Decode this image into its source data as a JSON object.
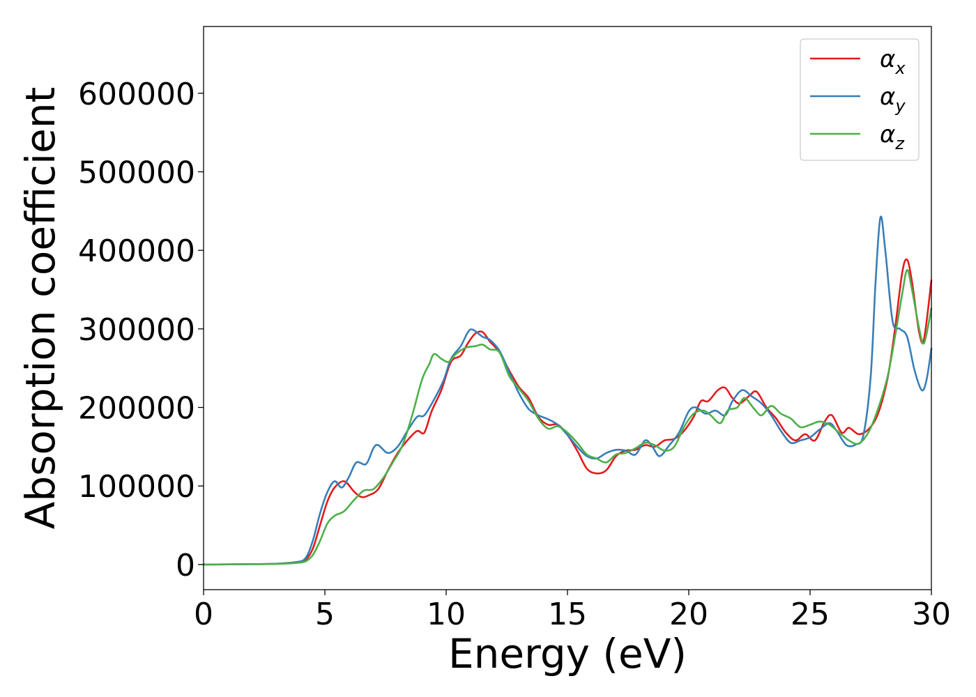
{
  "chart_data": {
    "type": "line",
    "title": "",
    "xlabel": "Energy (eV)",
    "ylabel": "Absorption coefficient",
    "xlim": [
      0,
      30
    ],
    "ylim": [
      -32000,
      685000
    ],
    "xticks": [
      0,
      5,
      10,
      15,
      20,
      25,
      30
    ],
    "yticks": [
      0,
      100000,
      200000,
      300000,
      400000,
      500000,
      600000
    ],
    "xtick_labels": [
      "0",
      "5",
      "10",
      "15",
      "20",
      "25",
      "30"
    ],
    "ytick_labels": [
      "0",
      "100000",
      "200000",
      "300000",
      "400000",
      "500000",
      "600000"
    ],
    "grid": false,
    "legend_position": "top-right",
    "series": [
      {
        "name": "α_x",
        "symbol": "α",
        "subscript": "x",
        "color": "#e41a1c",
        "points": [
          [
            0,
            0
          ],
          [
            2,
            500
          ],
          [
            3,
            1000
          ],
          [
            3.8,
            3000
          ],
          [
            4.2,
            6000
          ],
          [
            4.5,
            20000
          ],
          [
            4.8,
            50000
          ],
          [
            5.1,
            80000
          ],
          [
            5.4,
            98000
          ],
          [
            5.8,
            106000
          ],
          [
            6.2,
            93000
          ],
          [
            6.5,
            86000
          ],
          [
            6.8,
            88000
          ],
          [
            7.2,
            96000
          ],
          [
            7.6,
            120000
          ],
          [
            8,
            142000
          ],
          [
            8.4,
            158000
          ],
          [
            8.8,
            170000
          ],
          [
            9.1,
            168000
          ],
          [
            9.4,
            195000
          ],
          [
            9.8,
            222000
          ],
          [
            10.2,
            258000
          ],
          [
            10.6,
            266000
          ],
          [
            10.9,
            282000
          ],
          [
            11.2,
            294000
          ],
          [
            11.5,
            296000
          ],
          [
            11.8,
            284000
          ],
          [
            12.2,
            270000
          ],
          [
            12.6,
            247000
          ],
          [
            13,
            226000
          ],
          [
            13.4,
            212000
          ],
          [
            13.8,
            188000
          ],
          [
            14.2,
            178000
          ],
          [
            14.6,
            178000
          ],
          [
            15,
            165000
          ],
          [
            15.4,
            145000
          ],
          [
            15.8,
            122000
          ],
          [
            16.2,
            116000
          ],
          [
            16.6,
            120000
          ],
          [
            17,
            138000
          ],
          [
            17.4,
            145000
          ],
          [
            17.8,
            146000
          ],
          [
            18.2,
            152000
          ],
          [
            18.6,
            150000
          ],
          [
            19,
            158000
          ],
          [
            19.4,
            160000
          ],
          [
            19.8,
            170000
          ],
          [
            20.2,
            188000
          ],
          [
            20.5,
            208000
          ],
          [
            20.8,
            208000
          ],
          [
            21.2,
            222000
          ],
          [
            21.5,
            225000
          ],
          [
            21.8,
            212000
          ],
          [
            22.1,
            205000
          ],
          [
            22.5,
            215000
          ],
          [
            22.8,
            220000
          ],
          [
            23.2,
            200000
          ],
          [
            23.6,
            186000
          ],
          [
            24,
            168000
          ],
          [
            24.4,
            158000
          ],
          [
            24.8,
            166000
          ],
          [
            25.2,
            158000
          ],
          [
            25.6,
            182000
          ],
          [
            25.9,
            190000
          ],
          [
            26.3,
            168000
          ],
          [
            26.6,
            174000
          ],
          [
            27,
            166000
          ],
          [
            27.4,
            172000
          ],
          [
            27.8,
            192000
          ],
          [
            28.2,
            238000
          ],
          [
            28.5,
            300000
          ],
          [
            28.8,
            372000
          ],
          [
            29,
            388000
          ],
          [
            29.2,
            360000
          ],
          [
            29.5,
            295000
          ],
          [
            29.7,
            288000
          ],
          [
            30,
            362000
          ]
        ]
      },
      {
        "name": "α_y",
        "symbol": "α",
        "subscript": "y",
        "color": "#377eb8",
        "points": [
          [
            0,
            0
          ],
          [
            2,
            500
          ],
          [
            3,
            1000
          ],
          [
            3.8,
            3000
          ],
          [
            4.2,
            8000
          ],
          [
            4.5,
            30000
          ],
          [
            4.8,
            65000
          ],
          [
            5.1,
            92000
          ],
          [
            5.4,
            106000
          ],
          [
            5.7,
            98000
          ],
          [
            6,
            112000
          ],
          [
            6.3,
            130000
          ],
          [
            6.7,
            128000
          ],
          [
            7,
            148000
          ],
          [
            7.2,
            152000
          ],
          [
            7.6,
            142000
          ],
          [
            8,
            150000
          ],
          [
            8.4,
            170000
          ],
          [
            8.8,
            188000
          ],
          [
            9.1,
            190000
          ],
          [
            9.5,
            210000
          ],
          [
            9.9,
            235000
          ],
          [
            10.2,
            262000
          ],
          [
            10.6,
            278000
          ],
          [
            10.9,
            296000
          ],
          [
            11.1,
            299000
          ],
          [
            11.5,
            290000
          ],
          [
            11.8,
            286000
          ],
          [
            12.2,
            272000
          ],
          [
            12.6,
            245000
          ],
          [
            13,
            218000
          ],
          [
            13.4,
            198000
          ],
          [
            13.8,
            190000
          ],
          [
            14.2,
            185000
          ],
          [
            14.6,
            178000
          ],
          [
            15,
            165000
          ],
          [
            15.4,
            150000
          ],
          [
            15.8,
            138000
          ],
          [
            16.2,
            135000
          ],
          [
            16.6,
            142000
          ],
          [
            17,
            146000
          ],
          [
            17.4,
            145000
          ],
          [
            17.8,
            140000
          ],
          [
            18.2,
            158000
          ],
          [
            18.5,
            150000
          ],
          [
            18.8,
            138000
          ],
          [
            19.2,
            152000
          ],
          [
            19.6,
            168000
          ],
          [
            20,
            195000
          ],
          [
            20.3,
            200000
          ],
          [
            20.7,
            192000
          ],
          [
            21.1,
            196000
          ],
          [
            21.5,
            190000
          ],
          [
            21.8,
            208000
          ],
          [
            22.2,
            222000
          ],
          [
            22.6,
            214000
          ],
          [
            23,
            205000
          ],
          [
            23.4,
            190000
          ],
          [
            23.8,
            170000
          ],
          [
            24.2,
            155000
          ],
          [
            24.6,
            158000
          ],
          [
            25,
            162000
          ],
          [
            25.4,
            172000
          ],
          [
            25.8,
            180000
          ],
          [
            26.1,
            170000
          ],
          [
            26.5,
            152000
          ],
          [
            26.9,
            153000
          ],
          [
            27.2,
            165000
          ],
          [
            27.5,
            240000
          ],
          [
            27.7,
            360000
          ],
          [
            27.9,
            442000
          ],
          [
            28.1,
            400000
          ],
          [
            28.4,
            310000
          ],
          [
            28.7,
            300000
          ],
          [
            29,
            290000
          ],
          [
            29.3,
            248000
          ],
          [
            29.6,
            222000
          ],
          [
            29.8,
            235000
          ],
          [
            30,
            275000
          ]
        ]
      },
      {
        "name": "α_z",
        "symbol": "α",
        "subscript": "z",
        "color": "#4daf4a",
        "points": [
          [
            0,
            0
          ],
          [
            2,
            500
          ],
          [
            3,
            800
          ],
          [
            3.8,
            2000
          ],
          [
            4.2,
            4000
          ],
          [
            4.5,
            12000
          ],
          [
            4.8,
            30000
          ],
          [
            5.1,
            52000
          ],
          [
            5.4,
            62000
          ],
          [
            5.8,
            68000
          ],
          [
            6.2,
            82000
          ],
          [
            6.6,
            94000
          ],
          [
            7,
            96000
          ],
          [
            7.4,
            110000
          ],
          [
            7.8,
            130000
          ],
          [
            8.2,
            152000
          ],
          [
            8.6,
            190000
          ],
          [
            9,
            235000
          ],
          [
            9.3,
            255000
          ],
          [
            9.5,
            268000
          ],
          [
            9.8,
            262000
          ],
          [
            10.1,
            258000
          ],
          [
            10.4,
            268000
          ],
          [
            10.8,
            276000
          ],
          [
            11.2,
            278000
          ],
          [
            11.5,
            280000
          ],
          [
            11.8,
            274000
          ],
          [
            12.2,
            270000
          ],
          [
            12.6,
            240000
          ],
          [
            13,
            224000
          ],
          [
            13.4,
            208000
          ],
          [
            13.8,
            186000
          ],
          [
            14.2,
            173000
          ],
          [
            14.6,
            176000
          ],
          [
            15,
            168000
          ],
          [
            15.4,
            155000
          ],
          [
            15.8,
            140000
          ],
          [
            16.2,
            135000
          ],
          [
            16.6,
            130000
          ],
          [
            17,
            140000
          ],
          [
            17.4,
            142000
          ],
          [
            17.8,
            148000
          ],
          [
            18.2,
            155000
          ],
          [
            18.6,
            152000
          ],
          [
            19,
            145000
          ],
          [
            19.4,
            150000
          ],
          [
            19.8,
            175000
          ],
          [
            20.2,
            192000
          ],
          [
            20.6,
            196000
          ],
          [
            20.9,
            190000
          ],
          [
            21.3,
            180000
          ],
          [
            21.6,
            196000
          ],
          [
            22,
            200000
          ],
          [
            22.3,
            212000
          ],
          [
            22.7,
            198000
          ],
          [
            23,
            190000
          ],
          [
            23.4,
            202000
          ],
          [
            23.8,
            192000
          ],
          [
            24.2,
            186000
          ],
          [
            24.6,
            175000
          ],
          [
            25,
            178000
          ],
          [
            25.4,
            182000
          ],
          [
            25.8,
            178000
          ],
          [
            26.2,
            168000
          ],
          [
            26.6,
            158000
          ],
          [
            27,
            154000
          ],
          [
            27.4,
            168000
          ],
          [
            27.8,
            198000
          ],
          [
            28.2,
            240000
          ],
          [
            28.5,
            290000
          ],
          [
            28.8,
            345000
          ],
          [
            29,
            375000
          ],
          [
            29.2,
            350000
          ],
          [
            29.5,
            300000
          ],
          [
            29.7,
            282000
          ],
          [
            30,
            326000
          ]
        ]
      }
    ]
  }
}
